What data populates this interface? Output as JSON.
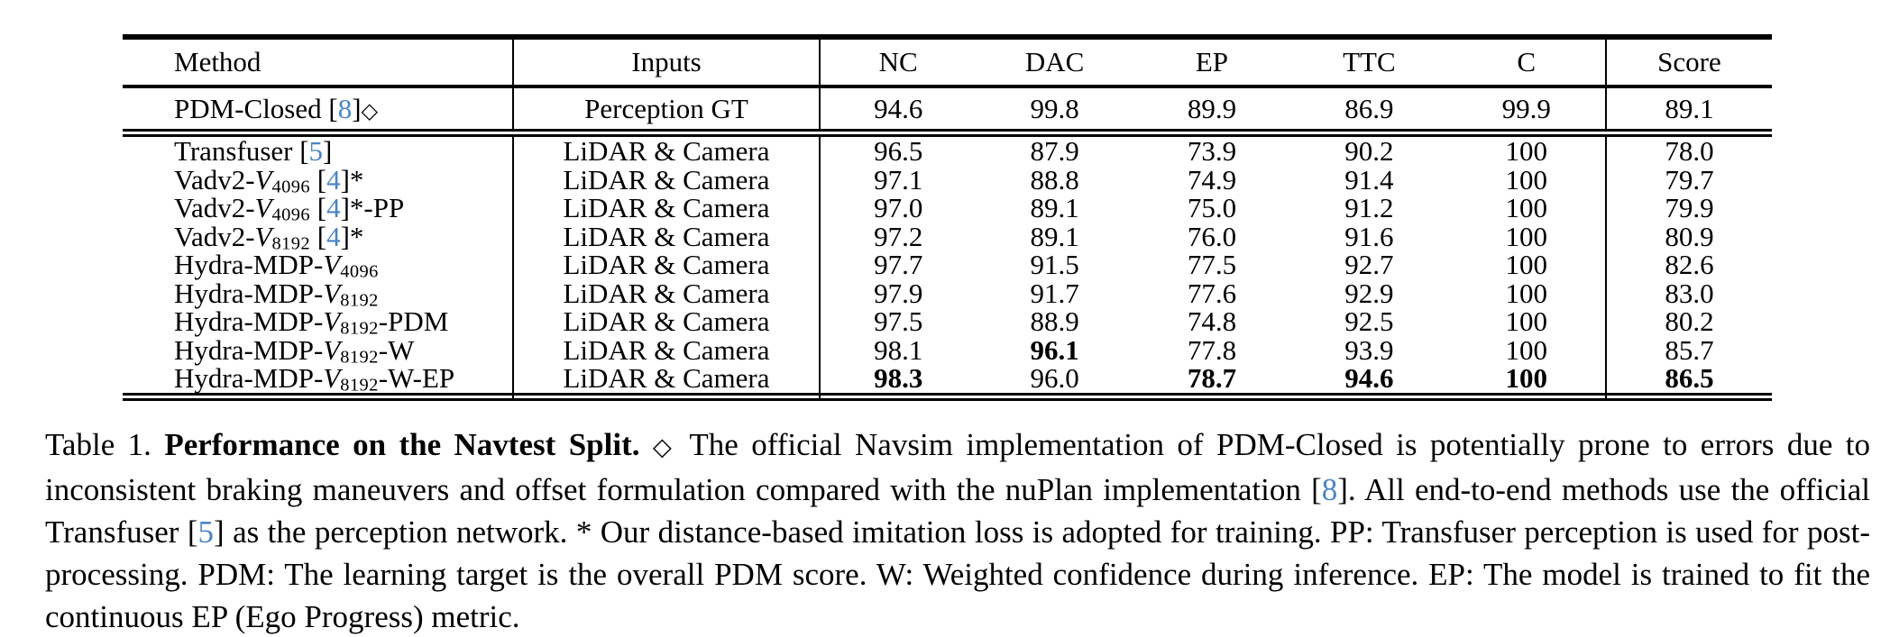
{
  "colors": {
    "citation_blue": "#4A85C4",
    "text_black": "#000000"
  },
  "table": {
    "headers": [
      "Method",
      "Inputs",
      "NC",
      "DAC",
      "EP",
      "TTC",
      "C",
      "Score"
    ],
    "gt_row": {
      "method_segments": [
        {
          "t": "PDM-Closed "
        },
        {
          "t": "["
        },
        {
          "t": "8",
          "cite": true
        },
        {
          "t": "]"
        },
        {
          "t": "◇",
          "dia": true
        }
      ],
      "inputs": "Perception GT",
      "values": [
        {
          "v": "94.6"
        },
        {
          "v": "99.8"
        },
        {
          "v": "89.9"
        },
        {
          "v": "86.9"
        },
        {
          "v": "99.9"
        },
        {
          "v": "89.1"
        }
      ]
    },
    "body_rows": [
      {
        "method_segments": [
          {
            "t": "Transfuser "
          },
          {
            "t": "["
          },
          {
            "t": "5",
            "cite": true
          },
          {
            "t": "]"
          }
        ],
        "inputs": "LiDAR & Camera",
        "values": [
          {
            "v": "96.5"
          },
          {
            "v": "87.9"
          },
          {
            "v": "73.9"
          },
          {
            "v": "90.2"
          },
          {
            "v": "100"
          },
          {
            "v": "78.0"
          }
        ]
      },
      {
        "method_segments": [
          {
            "t": "Vadv2-"
          },
          {
            "t": "V",
            "math": true
          },
          {
            "t": "4096",
            "sub": true
          },
          {
            "t": " ["
          },
          {
            "t": "4",
            "cite": true
          },
          {
            "t": "]*"
          }
        ],
        "inputs": "LiDAR & Camera",
        "values": [
          {
            "v": "97.1"
          },
          {
            "v": "88.8"
          },
          {
            "v": "74.9"
          },
          {
            "v": "91.4"
          },
          {
            "v": "100"
          },
          {
            "v": "79.7"
          }
        ]
      },
      {
        "method_segments": [
          {
            "t": "Vadv2-"
          },
          {
            "t": "V",
            "math": true
          },
          {
            "t": "4096",
            "sub": true
          },
          {
            "t": " ["
          },
          {
            "t": "4",
            "cite": true
          },
          {
            "t": "]*-PP"
          }
        ],
        "inputs": "LiDAR & Camera",
        "values": [
          {
            "v": "97.0"
          },
          {
            "v": "89.1"
          },
          {
            "v": "75.0"
          },
          {
            "v": "91.2"
          },
          {
            "v": "100"
          },
          {
            "v": "79.9"
          }
        ]
      },
      {
        "method_segments": [
          {
            "t": "Vadv2-"
          },
          {
            "t": "V",
            "math": true
          },
          {
            "t": "8192",
            "sub": true
          },
          {
            "t": " ["
          },
          {
            "t": "4",
            "cite": true
          },
          {
            "t": "]*"
          }
        ],
        "inputs": "LiDAR & Camera",
        "values": [
          {
            "v": "97.2"
          },
          {
            "v": "89.1"
          },
          {
            "v": "76.0"
          },
          {
            "v": "91.6"
          },
          {
            "v": "100"
          },
          {
            "v": "80.9"
          }
        ]
      },
      {
        "method_segments": [
          {
            "t": "Hydra-MDP-"
          },
          {
            "t": "V",
            "math": true
          },
          {
            "t": "4096",
            "sub": true
          }
        ],
        "inputs": "LiDAR & Camera",
        "values": [
          {
            "v": "97.7"
          },
          {
            "v": "91.5"
          },
          {
            "v": "77.5"
          },
          {
            "v": "92.7"
          },
          {
            "v": "100"
          },
          {
            "v": "82.6"
          }
        ]
      },
      {
        "method_segments": [
          {
            "t": "Hydra-MDP-"
          },
          {
            "t": "V",
            "math": true
          },
          {
            "t": "8192",
            "sub": true
          }
        ],
        "inputs": "LiDAR & Camera",
        "values": [
          {
            "v": "97.9"
          },
          {
            "v": "91.7"
          },
          {
            "v": "77.6"
          },
          {
            "v": "92.9"
          },
          {
            "v": "100"
          },
          {
            "v": "83.0"
          }
        ]
      },
      {
        "method_segments": [
          {
            "t": "Hydra-MDP-"
          },
          {
            "t": "V",
            "math": true
          },
          {
            "t": "8192",
            "sub": true
          },
          {
            "t": "-PDM"
          }
        ],
        "inputs": "LiDAR & Camera",
        "values": [
          {
            "v": "97.5"
          },
          {
            "v": "88.9"
          },
          {
            "v": "74.8"
          },
          {
            "v": "92.5"
          },
          {
            "v": "100"
          },
          {
            "v": "80.2"
          }
        ]
      },
      {
        "method_segments": [
          {
            "t": "Hydra-MDP-"
          },
          {
            "t": "V",
            "math": true
          },
          {
            "t": "8192",
            "sub": true
          },
          {
            "t": "-W"
          }
        ],
        "inputs": "LiDAR & Camera",
        "values": [
          {
            "v": "98.1"
          },
          {
            "v": "96.1",
            "b": true
          },
          {
            "v": "77.8"
          },
          {
            "v": "93.9"
          },
          {
            "v": "100"
          },
          {
            "v": "85.7"
          }
        ]
      },
      {
        "method_segments": [
          {
            "t": "Hydra-MDP-"
          },
          {
            "t": "V",
            "math": true
          },
          {
            "t": "8192",
            "sub": true
          },
          {
            "t": "-W-EP"
          }
        ],
        "inputs": "LiDAR & Camera",
        "values": [
          {
            "v": "98.3",
            "b": true
          },
          {
            "v": "96.0"
          },
          {
            "v": "78.7",
            "b": true
          },
          {
            "v": "94.6",
            "b": true
          },
          {
            "v": "100",
            "b": true
          },
          {
            "v": "86.5",
            "b": true
          }
        ]
      }
    ]
  },
  "caption": {
    "segments": [
      {
        "t": "Table 1. "
      },
      {
        "t": "Performance on the Navtest Split.",
        "bold": true
      },
      {
        "t": " "
      },
      {
        "t": "◇",
        "dia": true
      },
      {
        "t": " The official Navsim implementation of PDM-Closed is potentially prone to errors due to inconsistent braking maneuvers and offset formulation compared with the nuPlan implementation ["
      },
      {
        "t": "8",
        "cite": true
      },
      {
        "t": "]. All end-to-end methods use the official Transfuser ["
      },
      {
        "t": "5",
        "cite": true
      },
      {
        "t": "] as the perception network. * Our distance-based imitation loss is adopted for training. PP: Transfuser perception is used for post-processing. PDM: The learning target is the overall PDM score. W: Weighted confidence during inference. EP: The model is trained to fit the continuous EP (Ego Progress) metric."
      }
    ]
  }
}
